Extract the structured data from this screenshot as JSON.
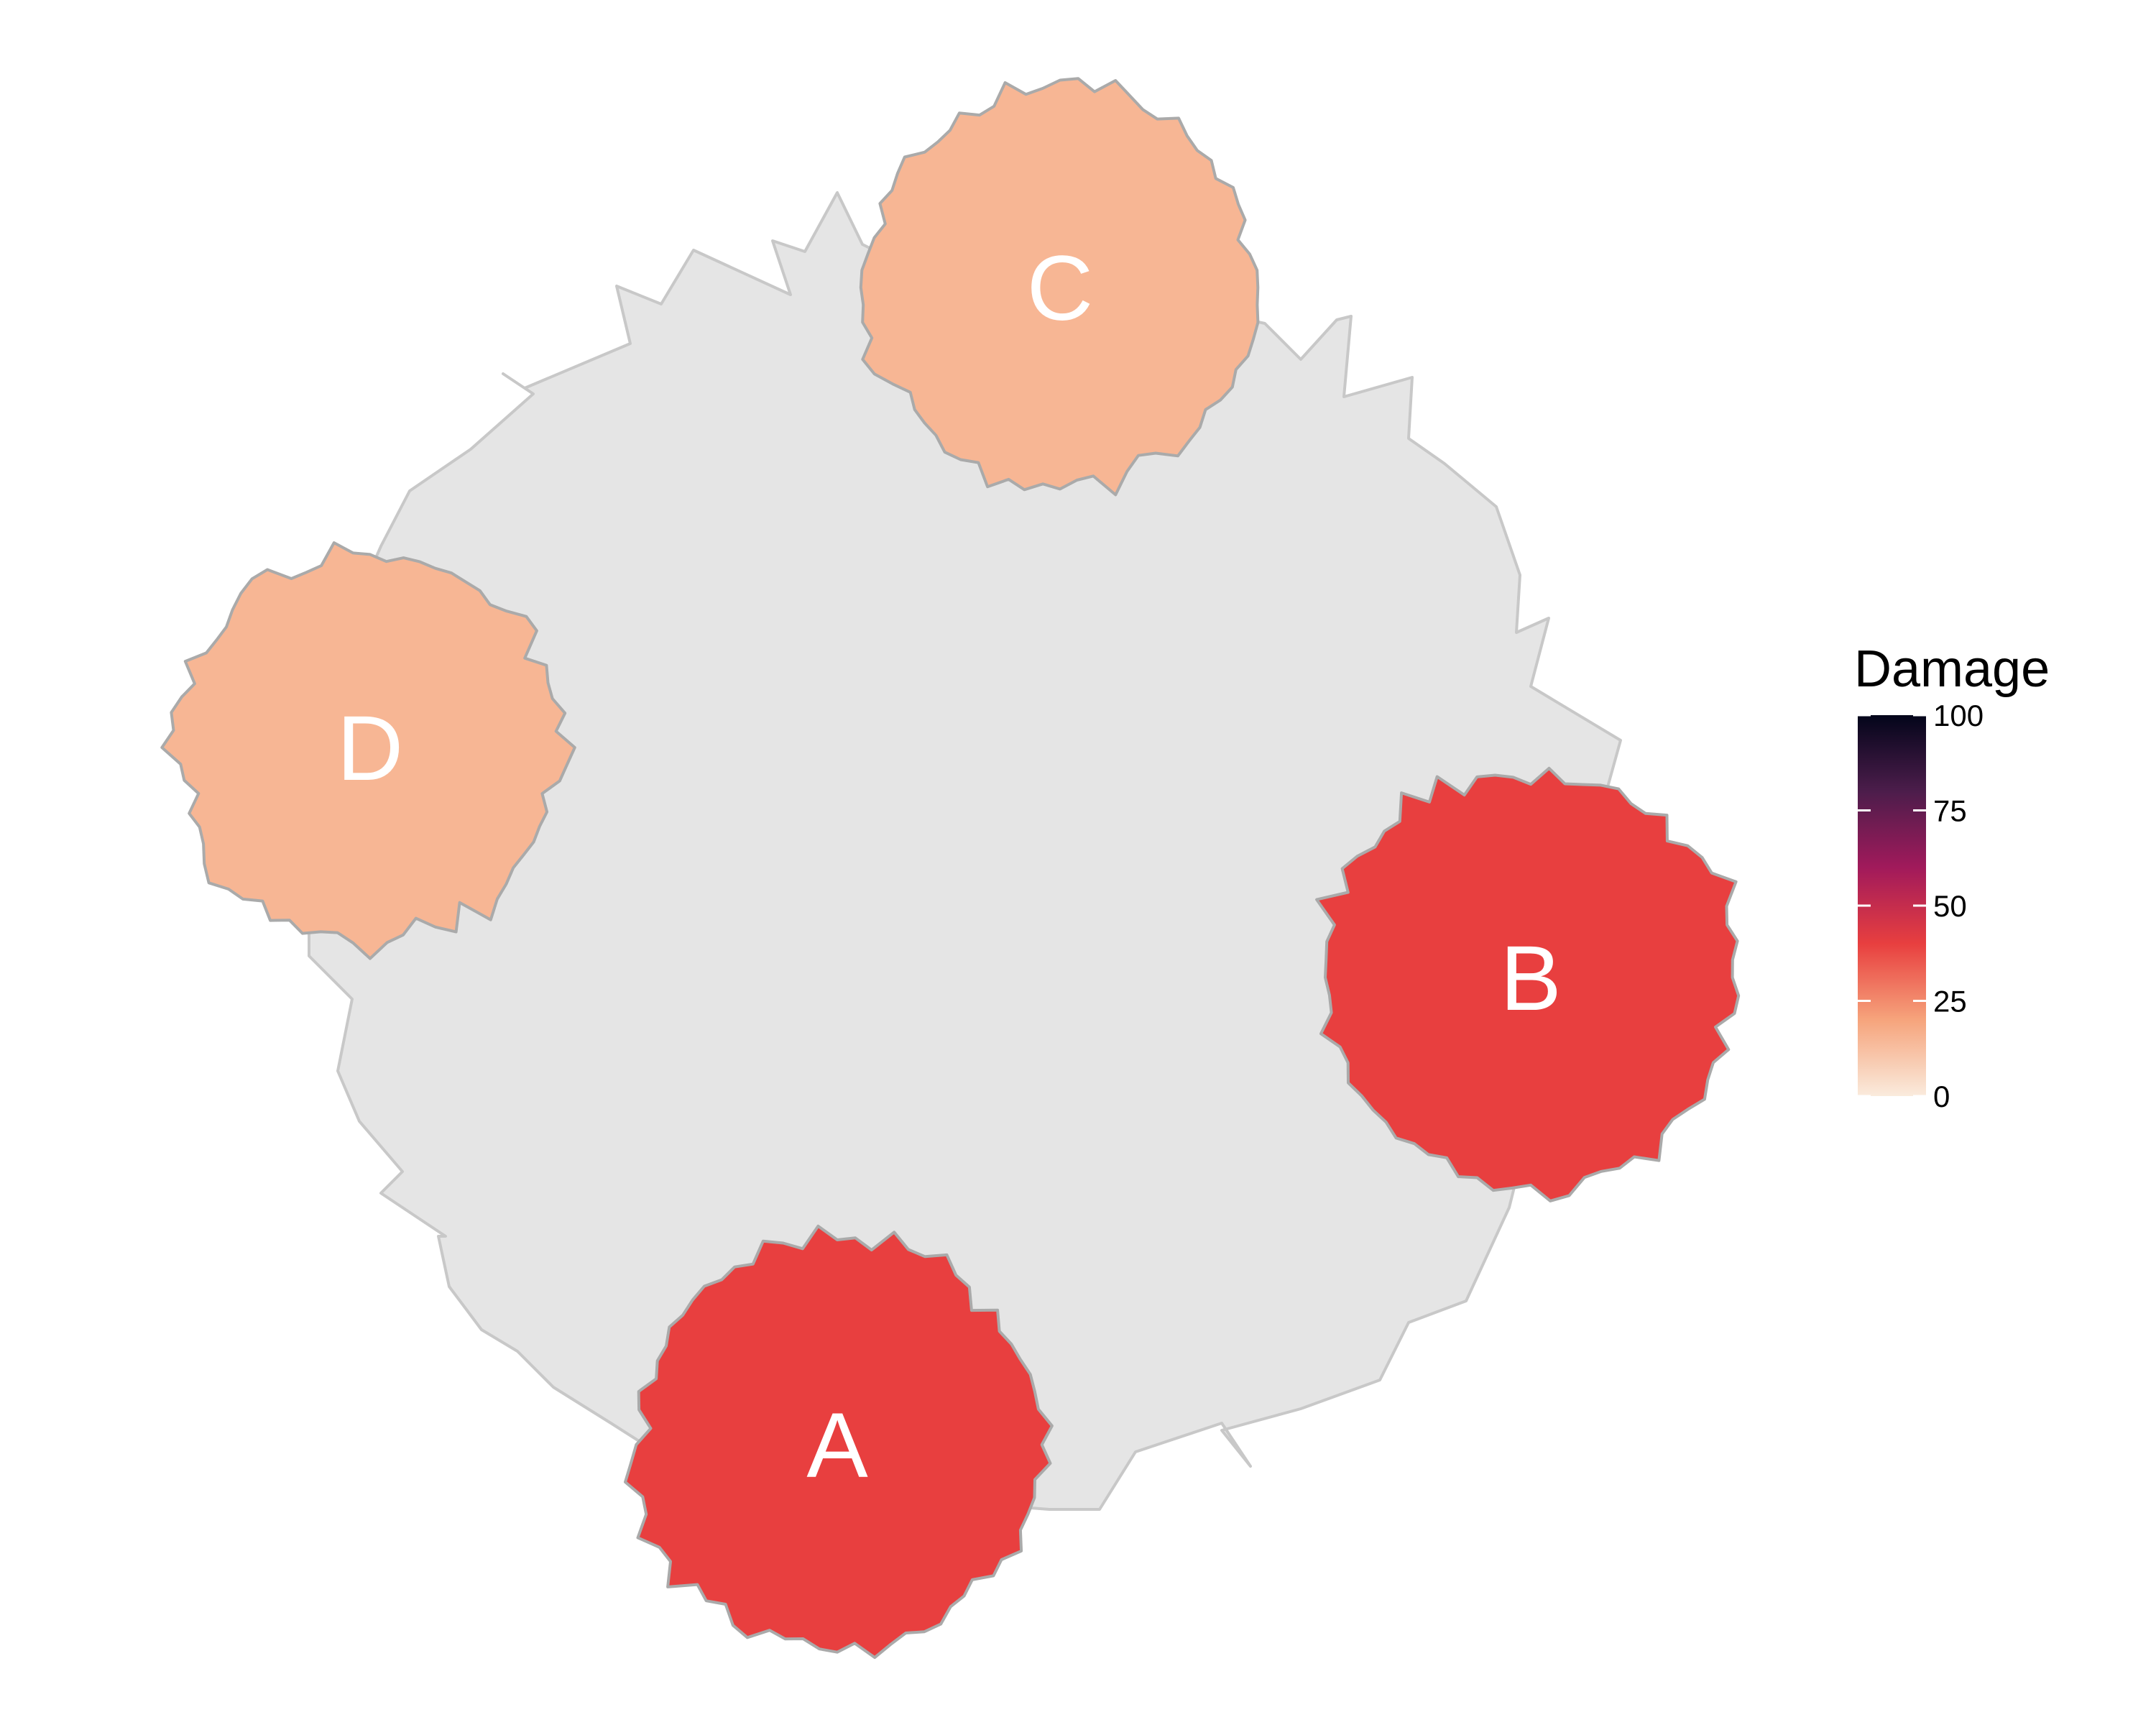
{
  "diagram": {
    "type": "spatial-damage-map",
    "scale": {
      "name": "Damage",
      "min": 0,
      "max": 100
    },
    "region": {
      "fill": "#e5e5e5",
      "stroke": "#c8c8c8"
    },
    "nodes": [
      {
        "id": "A",
        "label": "A",
        "damage": 40
      },
      {
        "id": "B",
        "label": "B",
        "damage": 40
      },
      {
        "id": "C",
        "label": "C",
        "damage": 15
      },
      {
        "id": "D",
        "label": "D",
        "damage": 15
      }
    ],
    "node_stroke": "#aaaaaa"
  },
  "legend": {
    "title": "Damage",
    "ticks": [
      "0",
      "25",
      "50",
      "75",
      "100"
    ],
    "colors": [
      "#faebdd",
      "#f6a47c",
      "#e83f3f",
      "#a11a5b",
      "#4c1d4b",
      "#03051a"
    ]
  }
}
